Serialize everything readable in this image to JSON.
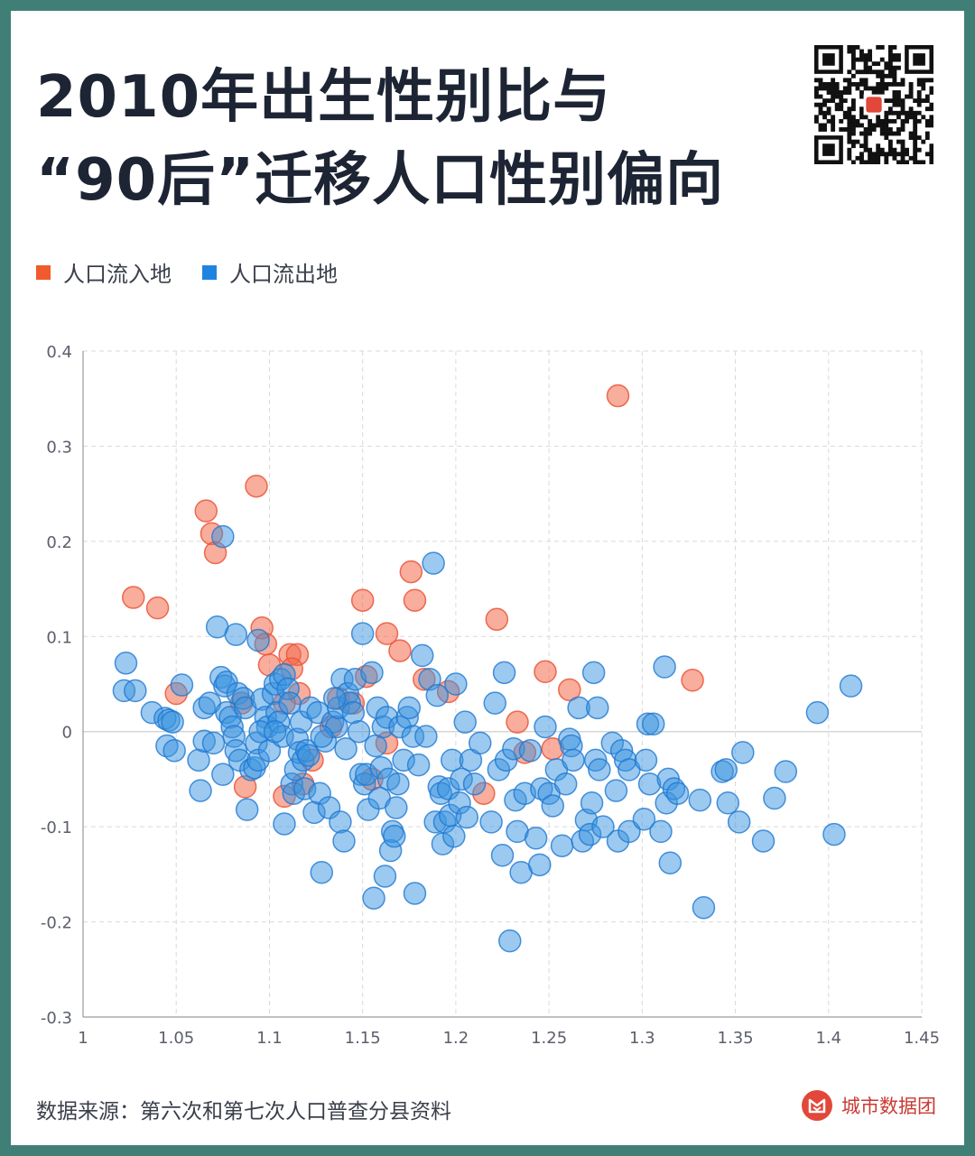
{
  "title": {
    "line1": "2010年出生性别比与",
    "line2": "“90后”迁移人口性别偏向"
  },
  "legend": {
    "inflow_label": "人口流入地",
    "outflow_label": "人口流出地"
  },
  "colors": {
    "inflow": "#f06a4c",
    "outflow": "#3a93e0",
    "inflow_dark": "#f15a2d",
    "outflow_dark": "#1f84e0",
    "title": "#1d2433",
    "frame": "#3f7f76"
  },
  "source": "数据来源：第六次和第七次人口普查分县资料",
  "brand": "城市数据团",
  "chart_data": {
    "type": "scatter",
    "title": "",
    "xlabel": "",
    "ylabel": "",
    "xlim": [
      1,
      1.45
    ],
    "ylim": [
      -0.3,
      0.4
    ],
    "xticks": [
      "1",
      "1.05",
      "1.1",
      "1.15",
      "1.2",
      "1.25",
      "1.3",
      "1.35",
      "1.4",
      "1.45"
    ],
    "yticks": [
      "0.4",
      "0.3",
      "0.2",
      "0.1",
      "0",
      "-0.1",
      "-0.2",
      "-0.3"
    ],
    "grid": true,
    "legend_position": "top-left",
    "series": [
      {
        "name": "人口流入地",
        "points": [
          [
            1.027,
            0.141
          ],
          [
            1.04,
            0.13
          ],
          [
            1.05,
            0.04
          ],
          [
            1.066,
            0.232
          ],
          [
            1.069,
            0.208
          ],
          [
            1.071,
            0.188
          ],
          [
            1.093,
            0.258
          ],
          [
            1.096,
            0.109
          ],
          [
            1.098,
            0.092
          ],
          [
            1.1,
            0.07
          ],
          [
            1.111,
            0.081
          ],
          [
            1.115,
            0.081
          ],
          [
            1.112,
            0.066
          ],
          [
            1.116,
            0.04
          ],
          [
            1.108,
            0.03
          ],
          [
            1.087,
            -0.058
          ],
          [
            1.108,
            -0.068
          ],
          [
            1.118,
            -0.055
          ],
          [
            1.123,
            -0.03
          ],
          [
            1.137,
            0.035
          ],
          [
            1.133,
            0.005
          ],
          [
            1.15,
            0.138
          ],
          [
            1.152,
            0.058
          ],
          [
            1.163,
            0.103
          ],
          [
            1.17,
            0.085
          ],
          [
            1.176,
            0.168
          ],
          [
            1.178,
            0.138
          ],
          [
            1.183,
            0.055
          ],
          [
            1.196,
            0.042
          ],
          [
            1.163,
            -0.012
          ],
          [
            1.222,
            0.118
          ],
          [
            1.215,
            -0.065
          ],
          [
            1.233,
            0.01
          ],
          [
            1.237,
            -0.022
          ],
          [
            1.248,
            0.063
          ],
          [
            1.252,
            -0.018
          ],
          [
            1.261,
            0.044
          ],
          [
            1.287,
            0.353
          ],
          [
            1.327,
            0.054
          ],
          [
            1.155,
            -0.05
          ],
          [
            1.085,
            0.03
          ],
          [
            1.145,
            0.03
          ]
        ]
      },
      {
        "name": "人口流出地",
        "points": [
          [
            1.023,
            0.072
          ],
          [
            1.022,
            0.043
          ],
          [
            1.028,
            0.043
          ],
          [
            1.037,
            0.02
          ],
          [
            1.044,
            0.014
          ],
          [
            1.046,
            0.012
          ],
          [
            1.048,
            0.01
          ],
          [
            1.045,
            -0.015
          ],
          [
            1.049,
            -0.02
          ],
          [
            1.053,
            0.049
          ],
          [
            1.062,
            -0.03
          ],
          [
            1.063,
            -0.062
          ],
          [
            1.065,
            -0.01
          ],
          [
            1.065,
            0.025
          ],
          [
            1.068,
            0.03
          ],
          [
            1.07,
            -0.012
          ],
          [
            1.072,
            0.11
          ],
          [
            1.074,
            0.057
          ],
          [
            1.075,
            0.205
          ],
          [
            1.076,
            0.048
          ],
          [
            1.077,
            0.052
          ],
          [
            1.075,
            -0.045
          ],
          [
            1.077,
            0.02
          ],
          [
            1.079,
            0.015
          ],
          [
            1.08,
            0.005
          ],
          [
            1.081,
            -0.005
          ],
          [
            1.082,
            0.102
          ],
          [
            1.082,
            -0.02
          ],
          [
            1.083,
            0.04
          ],
          [
            1.084,
            -0.03
          ],
          [
            1.086,
            0.035
          ],
          [
            1.087,
            0.025
          ],
          [
            1.088,
            -0.082
          ],
          [
            1.09,
            -0.04
          ],
          [
            1.092,
            -0.038
          ],
          [
            1.093,
            -0.012
          ],
          [
            1.094,
            -0.03
          ],
          [
            1.094,
            0.096
          ],
          [
            1.096,
            0.034
          ],
          [
            1.098,
            0.015
          ],
          [
            1.099,
            0.005
          ],
          [
            1.1,
            -0.02
          ],
          [
            1.102,
            0.04
          ],
          [
            1.103,
            0.05
          ],
          [
            1.104,
            0.02
          ],
          [
            1.105,
            0.01
          ],
          [
            1.106,
            0.055
          ],
          [
            1.107,
            -0.005
          ],
          [
            1.108,
            0.06
          ],
          [
            1.108,
            -0.097
          ],
          [
            1.11,
            0.045
          ],
          [
            1.111,
            0.03
          ],
          [
            1.112,
            -0.055
          ],
          [
            1.113,
            -0.065
          ],
          [
            1.114,
            -0.04
          ],
          [
            1.115,
            -0.008
          ],
          [
            1.116,
            -0.022
          ],
          [
            1.117,
            0.01
          ],
          [
            1.118,
            -0.03
          ],
          [
            1.119,
            -0.06
          ],
          [
            1.12,
            -0.02
          ],
          [
            1.121,
            -0.025
          ],
          [
            1.122,
            0.025
          ],
          [
            1.124,
            -0.085
          ],
          [
            1.126,
            0.02
          ],
          [
            1.127,
            -0.065
          ],
          [
            1.128,
            -0.148
          ],
          [
            1.13,
            -0.01
          ],
          [
            1.132,
            -0.08
          ],
          [
            1.134,
            0.01
          ],
          [
            1.136,
            0.005
          ],
          [
            1.137,
            0.025
          ],
          [
            1.138,
            -0.095
          ],
          [
            1.139,
            0.055
          ],
          [
            1.14,
            -0.115
          ],
          [
            1.141,
            -0.018
          ],
          [
            1.142,
            0.04
          ],
          [
            1.143,
            0.03
          ],
          [
            1.145,
            0.02
          ],
          [
            1.146,
            0.055
          ],
          [
            1.148,
            0.0
          ],
          [
            1.149,
            -0.045
          ],
          [
            1.15,
            0.103
          ],
          [
            1.151,
            -0.055
          ],
          [
            1.152,
            -0.045
          ],
          [
            1.153,
            -0.082
          ],
          [
            1.155,
            0.062
          ],
          [
            1.156,
            -0.175
          ],
          [
            1.157,
            -0.015
          ],
          [
            1.158,
            0.025
          ],
          [
            1.159,
            -0.07
          ],
          [
            1.16,
            -0.038
          ],
          [
            1.161,
            0.005
          ],
          [
            1.162,
            -0.152
          ],
          [
            1.163,
            0.015
          ],
          [
            1.164,
            -0.05
          ],
          [
            1.165,
            -0.125
          ],
          [
            1.166,
            -0.105
          ],
          [
            1.167,
            -0.11
          ],
          [
            1.168,
            -0.08
          ],
          [
            1.169,
            -0.055
          ],
          [
            1.17,
            0.005
          ],
          [
            1.172,
            -0.03
          ],
          [
            1.174,
            0.015
          ],
          [
            1.175,
            0.025
          ],
          [
            1.177,
            -0.005
          ],
          [
            1.178,
            -0.17
          ],
          [
            1.18,
            -0.035
          ],
          [
            1.182,
            0.08
          ],
          [
            1.184,
            -0.005
          ],
          [
            1.186,
            0.055
          ],
          [
            1.188,
            0.177
          ],
          [
            1.189,
            -0.095
          ],
          [
            1.19,
            0.038
          ],
          [
            1.191,
            -0.058
          ],
          [
            1.192,
            -0.065
          ],
          [
            1.193,
            -0.118
          ],
          [
            1.194,
            -0.095
          ],
          [
            1.196,
            -0.06
          ],
          [
            1.197,
            -0.088
          ],
          [
            1.198,
            -0.03
          ],
          [
            1.199,
            -0.11
          ],
          [
            1.2,
            0.05
          ],
          [
            1.202,
            -0.075
          ],
          [
            1.203,
            -0.05
          ],
          [
            1.205,
            0.01
          ],
          [
            1.206,
            -0.09
          ],
          [
            1.208,
            -0.03
          ],
          [
            1.21,
            -0.055
          ],
          [
            1.213,
            -0.012
          ],
          [
            1.219,
            -0.095
          ],
          [
            1.221,
            0.03
          ],
          [
            1.223,
            -0.04
          ],
          [
            1.225,
            -0.13
          ],
          [
            1.226,
            0.062
          ],
          [
            1.227,
            -0.03
          ],
          [
            1.229,
            -0.22
          ],
          [
            1.231,
            -0.018
          ],
          [
            1.232,
            -0.072
          ],
          [
            1.233,
            -0.105
          ],
          [
            1.235,
            -0.148
          ],
          [
            1.237,
            -0.065
          ],
          [
            1.24,
            -0.02
          ],
          [
            1.243,
            -0.112
          ],
          [
            1.245,
            -0.14
          ],
          [
            1.246,
            -0.06
          ],
          [
            1.248,
            0.005
          ],
          [
            1.25,
            -0.065
          ],
          [
            1.252,
            -0.078
          ],
          [
            1.254,
            -0.04
          ],
          [
            1.257,
            -0.12
          ],
          [
            1.259,
            -0.055
          ],
          [
            1.261,
            -0.008
          ],
          [
            1.262,
            -0.015
          ],
          [
            1.263,
            -0.03
          ],
          [
            1.266,
            0.025
          ],
          [
            1.268,
            -0.115
          ],
          [
            1.27,
            -0.093
          ],
          [
            1.272,
            -0.108
          ],
          [
            1.273,
            -0.075
          ],
          [
            1.274,
            0.062
          ],
          [
            1.275,
            -0.03
          ],
          [
            1.276,
            0.025
          ],
          [
            1.277,
            -0.04
          ],
          [
            1.279,
            -0.1
          ],
          [
            1.284,
            -0.012
          ],
          [
            1.286,
            -0.062
          ],
          [
            1.287,
            -0.115
          ],
          [
            1.289,
            -0.02
          ],
          [
            1.291,
            -0.03
          ],
          [
            1.293,
            -0.105
          ],
          [
            1.293,
            -0.04
          ],
          [
            1.301,
            -0.092
          ],
          [
            1.302,
            -0.03
          ],
          [
            1.303,
            0.008
          ],
          [
            1.304,
            -0.055
          ],
          [
            1.306,
            0.008
          ],
          [
            1.31,
            -0.105
          ],
          [
            1.312,
            0.068
          ],
          [
            1.313,
            -0.075
          ],
          [
            1.314,
            -0.05
          ],
          [
            1.315,
            -0.138
          ],
          [
            1.317,
            -0.06
          ],
          [
            1.319,
            -0.065
          ],
          [
            1.331,
            -0.072
          ],
          [
            1.333,
            -0.185
          ],
          [
            1.343,
            -0.042
          ],
          [
            1.345,
            -0.04
          ],
          [
            1.346,
            -0.075
          ],
          [
            1.352,
            -0.095
          ],
          [
            1.354,
            -0.022
          ],
          [
            1.365,
            -0.115
          ],
          [
            1.371,
            -0.07
          ],
          [
            1.377,
            -0.042
          ],
          [
            1.394,
            0.02
          ],
          [
            1.403,
            -0.108
          ],
          [
            1.412,
            0.048
          ],
          [
            1.135,
            0.035
          ],
          [
            1.128,
            -0.005
          ],
          [
            1.095,
            0.0
          ],
          [
            1.103,
            0.0
          ]
        ]
      }
    ]
  }
}
